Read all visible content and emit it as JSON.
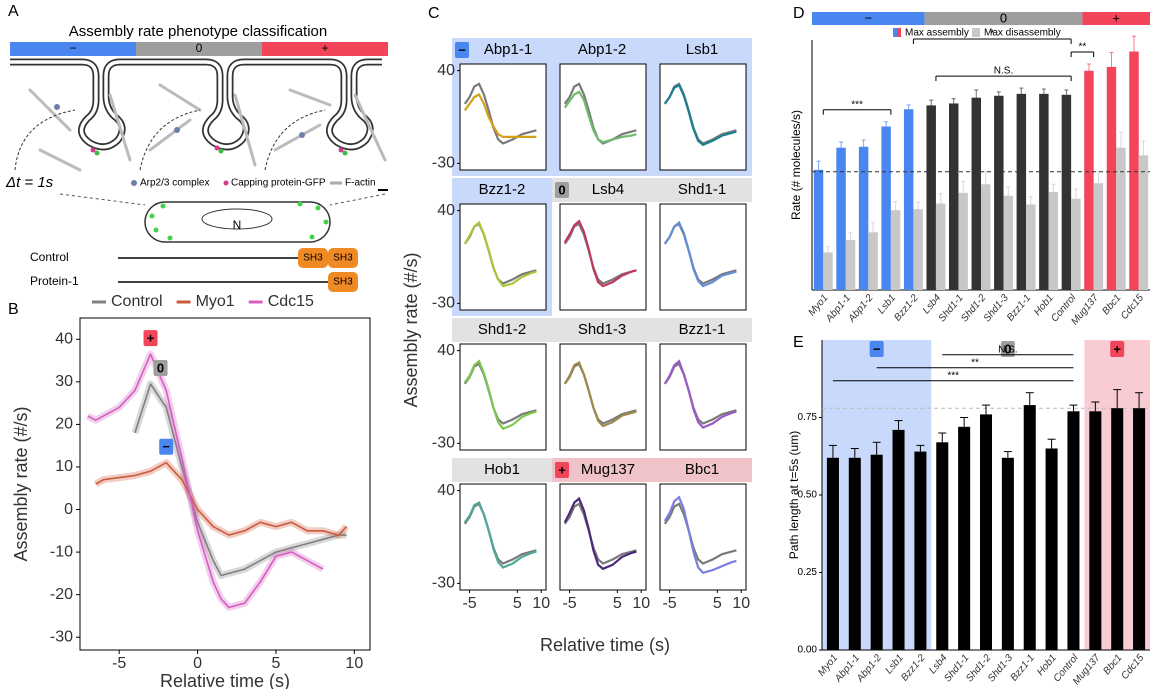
{
  "panel_labels": [
    "A",
    "B",
    "C",
    "D",
    "E"
  ],
  "diagram": {
    "title": "Assembly rate phenotype classification",
    "classes": [
      "−",
      "0",
      "+"
    ],
    "class_colors": [
      "#4a86f0",
      "#9e9e9e",
      "#f2455a"
    ],
    "dt": "Δt = 1s",
    "legend": [
      "Arp2/3 complex",
      "Capping protein-GFP",
      "F-actin"
    ],
    "nucleus": "N",
    "constructs": [
      {
        "name": "Control",
        "domains": [
          "SH3",
          "SH3"
        ]
      },
      {
        "name": "Protein-1",
        "domains": [
          "SH3"
        ]
      }
    ]
  },
  "chart_data": [
    {
      "type": "line",
      "xlabel": "Relative time (s)",
      "ylabel": "Assembly rate (#/s)",
      "x": [
        -7,
        -6.5,
        -6,
        -5,
        -4,
        -3,
        -2,
        -1,
        0,
        1,
        1.5,
        2,
        3,
        4,
        5,
        6,
        7,
        8,
        9,
        9.5
      ],
      "series": [
        {
          "name": "Control",
          "color": "#808080",
          "values": [
            null,
            null,
            null,
            null,
            18,
            29.5,
            24,
            10,
            -3,
            -12,
            -15.5,
            -15,
            -14,
            -12,
            -10,
            -9,
            -8,
            -7,
            -6,
            -6
          ]
        },
        {
          "name": "Myo1",
          "color": "#cc5a3c",
          "values": [
            null,
            6,
            7,
            7.5,
            8,
            9,
            11,
            7,
            0,
            -4,
            -5,
            -6,
            -5,
            -3,
            -4,
            -3,
            -5,
            -5,
            -6,
            -4
          ]
        },
        {
          "name": "Cdc15",
          "color": "#d45fc0",
          "values": [
            22,
            21,
            22,
            24,
            28,
            36.5,
            28,
            12,
            -5,
            -17,
            -21,
            -23,
            -22,
            -17,
            -11,
            -10,
            -12,
            -14,
            null,
            null
          ]
        }
      ],
      "markers": [
        {
          "label": "+",
          "series": "Cdc15"
        },
        {
          "label": "0",
          "series": "Control"
        },
        {
          "label": "−",
          "series": "Myo1"
        }
      ],
      "xlim": [
        -7.5,
        11
      ],
      "ylim": [
        -33,
        45
      ],
      "xticks": [
        -5,
        0,
        5,
        10
      ],
      "yticks": [
        40,
        30,
        20,
        10,
        0,
        -10,
        -20,
        -30
      ]
    },
    {
      "type": "small-multiples",
      "xlabel": "Relative time (s)",
      "ylabel": "Assembly rate (#/s)",
      "x": [
        -6,
        -5,
        -4,
        -3,
        -2,
        -1,
        0,
        1,
        2,
        4,
        6,
        8,
        9
      ],
      "control": {
        "color": "#7a7a7a",
        "values": [
          15,
          20,
          28,
          30,
          22,
          10,
          -3,
          -12,
          -15,
          -12,
          -8,
          -6,
          -5
        ]
      },
      "xlim": [
        -7,
        11
      ],
      "ylim": [
        -35,
        45
      ],
      "xticks": [
        -5,
        5,
        10
      ],
      "yticks": [
        40,
        -30
      ],
      "panels": [
        {
          "name": "Abp1-1",
          "color": "#d4a017",
          "band_color": "#c9d9fb",
          "badge": "−",
          "values": [
            10,
            15,
            20,
            22,
            15,
            5,
            -2,
            -8,
            -10,
            -10,
            -10,
            -10,
            -10
          ]
        },
        {
          "name": "Abp1-2",
          "color": "#6dbb6d",
          "band_color": "#c9d9fb",
          "values": [
            12,
            17,
            22,
            24,
            18,
            6,
            -5,
            -12,
            -14,
            -12,
            -10,
            -9,
            -8
          ]
        },
        {
          "name": "Lsb1",
          "color": "#1a7f8e",
          "band_color": "#c9d9fb",
          "values": [
            15,
            20,
            27,
            29,
            21,
            9,
            -4,
            -13,
            -16,
            -13,
            -9,
            -7,
            -6
          ]
        },
        {
          "name": "Bzz1-2",
          "color": "#a8c83a",
          "band_color": "#c9d9fb",
          "values": [
            15,
            21,
            28,
            31,
            22,
            10,
            -3,
            -12,
            -17,
            -15,
            -10,
            -7,
            -6
          ]
        },
        {
          "name": "Lsb4",
          "color": "#c0395a",
          "band_color": "#e2e2e2",
          "badge": "0",
          "values": [
            16,
            22,
            29,
            32,
            24,
            11,
            -4,
            -14,
            -17,
            -14,
            -9,
            -6,
            -5
          ]
        },
        {
          "name": "Shd1-1",
          "color": "#5f8fd4",
          "band_color": "#e2e2e2",
          "values": [
            15,
            20,
            28,
            31,
            23,
            10,
            -4,
            -13,
            -17,
            -14,
            -9,
            -7,
            -6
          ]
        },
        {
          "name": "Shd1-2",
          "color": "#7ec850",
          "band_color": "#e2e2e2",
          "values": [
            16,
            21,
            29,
            32,
            23,
            11,
            -3,
            -14,
            -19,
            -16,
            -10,
            -7,
            -6
          ]
        },
        {
          "name": "Shd1-3",
          "color": "#a08a4a",
          "band_color": "#e2e2e2",
          "values": [
            15,
            21,
            29,
            31,
            22,
            10,
            -3,
            -13,
            -17,
            -14,
            -9,
            -7,
            -6
          ]
        },
        {
          "name": "Bzz1-1",
          "color": "#9b59c8",
          "band_color": "#e2e2e2",
          "values": [
            15,
            21,
            29,
            32,
            22,
            10,
            -4,
            -14,
            -18,
            -15,
            -10,
            -7,
            -6
          ]
        },
        {
          "name": "Hob1",
          "color": "#4fa89a",
          "band_color": "#e2e2e2",
          "values": [
            16,
            21,
            29,
            31,
            22,
            10,
            -4,
            -14,
            -18,
            -15,
            -10,
            -7,
            -6
          ]
        },
        {
          "name": "Mug137",
          "color": "#4b2a7a",
          "band_color": "#efc3c8",
          "badge": "+",
          "values": [
            16,
            23,
            31,
            34,
            25,
            11,
            -5,
            -16,
            -19,
            -16,
            -10,
            -7,
            -6
          ]
        },
        {
          "name": "Bbc1",
          "color": "#7a7ee0",
          "band_color": "#efc3c8",
          "values": [
            17,
            23,
            32,
            35,
            26,
            10,
            -6,
            -18,
            -22,
            -20,
            -17,
            -14,
            -13
          ]
        }
      ]
    },
    {
      "type": "grouped-bar",
      "ylabel": "Rate (# molecules/s)",
      "categories": [
        "Myo1",
        "Abp1-1",
        "Abp1-2",
        "Lsb1",
        "Bzz1-2",
        "Lsb4",
        "Shd1-1",
        "Shd1-2",
        "Shd1-3",
        "Bzz1-1",
        "Hob1",
        "Control",
        "Mug137",
        "Bbc1",
        "Cdc15"
      ],
      "series": [
        {
          "name": "Max assembly",
          "colors": [
            "#4a86f0",
            "#4a86f0",
            "#4a86f0",
            "#4a86f0",
            "#4a86f0",
            "#333333",
            "#333333",
            "#333333",
            "#333333",
            "#333333",
            "#333333",
            "#333333",
            "#f2455a",
            "#f2455a",
            "#f2455a"
          ],
          "values": [
            25,
            29.6,
            29.8,
            34,
            37.6,
            38.4,
            38.8,
            40,
            40.4,
            40.8,
            40.8,
            40.6,
            45.6,
            46.4,
            49.6
          ],
          "errors": [
            1.8,
            1.2,
            1.4,
            1.0,
            0.9,
            1.1,
            1.0,
            1.6,
            0.8,
            1.2,
            1.0,
            1.0,
            1.4,
            3.0,
            3.2
          ]
        },
        {
          "name": "Max disassembly",
          "color": "#c8c8c8",
          "values": [
            7.8,
            10.4,
            12,
            16.6,
            16.8,
            18,
            20.2,
            22,
            19.6,
            17.8,
            20.4,
            19,
            22.2,
            29.6,
            28
          ],
          "errors": [
            1.2,
            1.5,
            2.0,
            1.8,
            1.4,
            2.0,
            2.4,
            2.6,
            1.8,
            1.6,
            1.6,
            2.0,
            2.4,
            3.2,
            3.0
          ]
        }
      ],
      "refline": 24.6,
      "class_bar": [
        {
          "label": "−",
          "color": "#4a86f0",
          "from": "Myo1",
          "to": "Bzz1-2"
        },
        {
          "label": "0",
          "color": "#9e9e9e",
          "from": "Lsb4",
          "to": "Control"
        },
        {
          "label": "+",
          "color": "#f2455a",
          "from": "Mug137",
          "to": "Cdc15"
        }
      ],
      "significance": [
        {
          "label": "**",
          "from": "Control",
          "to": "Mug137"
        },
        {
          "label": "***",
          "from": "Myo1",
          "to": "Lsb1"
        },
        {
          "label": "N.S.",
          "from": "Lsb4",
          "to": "Control"
        },
        {
          "label": "*",
          "from": "Bzz1-2",
          "to": "Control"
        }
      ],
      "ylim": [
        0,
        52
      ]
    },
    {
      "type": "bar",
      "ylabel": "Path length at t=5s (um)",
      "categories": [
        "Myo1",
        "Abp1-1",
        "Abp1-2",
        "Lsb1",
        "Bzz1-2",
        "Lsb4",
        "Shd1-1",
        "Shd1-2",
        "Shd1-3",
        "Bzz1-1",
        "Hob1",
        "Control",
        "Mug137",
        "Bbc1",
        "Cdc15"
      ],
      "values": [
        0.62,
        0.62,
        0.63,
        0.71,
        0.64,
        0.67,
        0.72,
        0.76,
        0.62,
        0.79,
        0.65,
        0.77,
        0.77,
        0.78,
        0.78
      ],
      "errors": [
        0.04,
        0.03,
        0.04,
        0.03,
        0.02,
        0.03,
        0.03,
        0.03,
        0.02,
        0.04,
        0.03,
        0.02,
        0.03,
        0.06,
        0.05
      ],
      "color": "#000000",
      "refline": 0.78,
      "bands": [
        {
          "label": "−",
          "color": "#c9d9fb",
          "badge_color": "#4a86f0",
          "from": "Myo1",
          "to": "Bzz1-2"
        },
        {
          "label": "0",
          "color": "#ffffff",
          "badge_color": "#9e9e9e",
          "from": "Lsb4",
          "to": "Control"
        },
        {
          "label": "+",
          "color": "#f8ccd2",
          "badge_color": "#f2455a",
          "from": "Mug137",
          "to": "Cdc15"
        }
      ],
      "significance": [
        {
          "label": "***",
          "from": "Myo1",
          "to": "Control"
        },
        {
          "label": "**",
          "from": "Abp1-2",
          "to": "Control"
        },
        {
          "label": "N.S.",
          "from": "Lsb4",
          "to": "Control"
        }
      ],
      "ylim": [
        0,
        1
      ],
      "yticks": [
        {
          "value": 0,
          "label": "0.00"
        },
        {
          "value": 0.25,
          "label": "0.25"
        },
        {
          "value": 0.5,
          "label": "0.50"
        },
        {
          "value": 0.75,
          "label": "0.75"
        }
      ]
    }
  ]
}
